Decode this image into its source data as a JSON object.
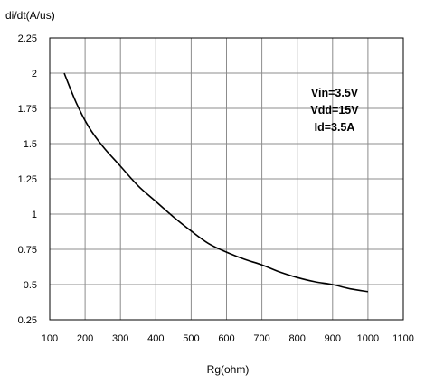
{
  "chart_data": {
    "type": "line",
    "ylabel": "di/dt(A/us)",
    "xlabel": "Rg(ohm)",
    "xlim": [
      100,
      1100
    ],
    "ylim": [
      0.25,
      2.25
    ],
    "x_ticks": [
      "100",
      "200",
      "300",
      "400",
      "500",
      "600",
      "700",
      "800",
      "900",
      "1000",
      "1100"
    ],
    "y_ticks": [
      "2.25",
      "2",
      "1.75",
      "1.5",
      "1.25",
      "1",
      "0.75",
      "0.5",
      "0.25"
    ],
    "grid": true,
    "annotations": [
      "Vin=3.5V",
      "Vdd=15V",
      "Id=3.5A"
    ],
    "series": [
      {
        "x": [
          141,
          175,
          210,
          250,
          300,
          350,
          400,
          450,
          500,
          550,
          600,
          650,
          700,
          750,
          800,
          850,
          900,
          950,
          1000
        ],
        "y": [
          2.0,
          1.79,
          1.62,
          1.48,
          1.34,
          1.2,
          1.09,
          0.98,
          0.88,
          0.79,
          0.73,
          0.68,
          0.64,
          0.59,
          0.55,
          0.52,
          0.5,
          0.47,
          0.45
        ]
      }
    ]
  }
}
